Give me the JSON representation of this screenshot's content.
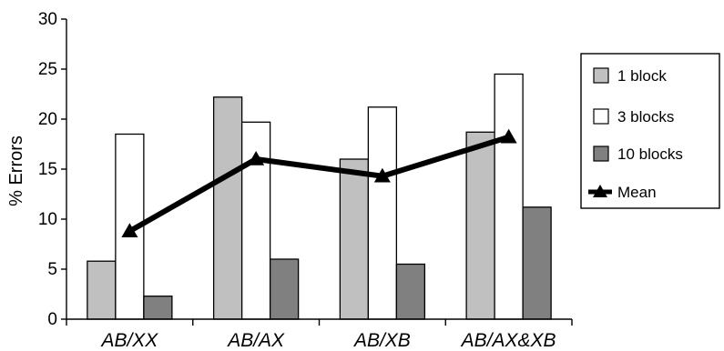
{
  "chart_data": {
    "type": "bar",
    "categories": [
      "AB/XX",
      "AB/AX",
      "AB/XB",
      "AB/AX&XB"
    ],
    "ylabel": "% Errors",
    "xlabel": "",
    "ylim": [
      0,
      30
    ],
    "yticks": [
      0,
      5,
      10,
      15,
      20,
      25,
      30
    ],
    "grid": false,
    "legend_position": "right",
    "series": [
      {
        "name": "1 block",
        "values": [
          5.8,
          22.2,
          16.0,
          18.7
        ],
        "color": "#c0c0c0"
      },
      {
        "name": "3 blocks",
        "values": [
          18.5,
          19.7,
          21.2,
          24.5
        ],
        "color": "#ffffff"
      },
      {
        "name": "10 blocks",
        "values": [
          2.3,
          6.0,
          5.5,
          11.2
        ],
        "color": "#808080"
      }
    ],
    "line_series": {
      "name": "Mean",
      "values": [
        8.8,
        16.0,
        14.3,
        18.2
      ],
      "color": "#000000",
      "marker": "triangle"
    }
  }
}
